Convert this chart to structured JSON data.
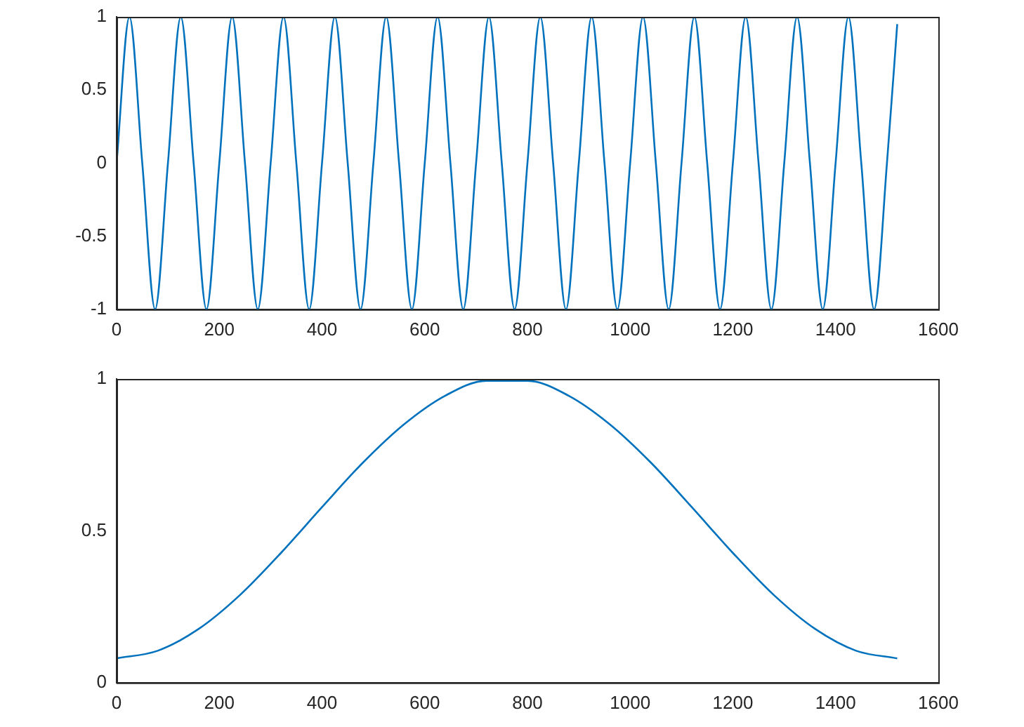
{
  "chart_data": [
    {
      "type": "line",
      "x": [
        0,
        25,
        50,
        75,
        100,
        125,
        150,
        175,
        200,
        225,
        250,
        275,
        300,
        325,
        350,
        375,
        400,
        425,
        450,
        475,
        500,
        525,
        550,
        575,
        600,
        625,
        650,
        675,
        700,
        725,
        750,
        775,
        800,
        825,
        850,
        875,
        900,
        925,
        950,
        975,
        1000,
        1025,
        1050,
        1075,
        1100,
        1125,
        1150,
        1175,
        1200,
        1225,
        1250,
        1275,
        1300,
        1325,
        1350,
        1375,
        1400,
        1425,
        1450,
        1475,
        1500,
        1520
      ],
      "series": [
        {
          "color": "#0072bd",
          "values": [
            0,
            1,
            0,
            -1,
            0,
            1,
            0,
            -1,
            0,
            1,
            0,
            -1,
            0,
            1,
            0,
            -1,
            0,
            1,
            0,
            -1,
            0,
            1,
            0,
            -1,
            0,
            1,
            0,
            -1,
            0,
            1,
            0,
            -1,
            0,
            1,
            0,
            -1,
            0,
            1,
            0,
            -1,
            0,
            1,
            0,
            -1,
            0,
            1,
            0,
            -1,
            0,
            1,
            0,
            -1,
            0,
            1,
            0,
            -1,
            0,
            1,
            0,
            -1,
            0,
            0.95
          ]
        }
      ],
      "xlim": [
        0,
        1600
      ],
      "xticks": [
        0,
        200,
        400,
        600,
        800,
        1000,
        1200,
        1400,
        1600
      ],
      "ylim": [
        -1,
        1
      ],
      "yticks": [
        -1,
        -0.5,
        0,
        0.5,
        1
      ],
      "grid": false,
      "legend": false,
      "marker": "none",
      "line_style": "solid"
    },
    {
      "type": "line",
      "x": [
        0,
        80,
        160,
        240,
        320,
        400,
        480,
        560,
        640,
        720,
        800,
        880,
        960,
        1040,
        1120,
        1200,
        1280,
        1360,
        1440,
        1520
      ],
      "series": [
        {
          "color": "#0072bd",
          "values": [
            0.08,
            0.105,
            0.177,
            0.288,
            0.427,
            0.578,
            0.725,
            0.851,
            0.945,
            0.994,
            0.994,
            0.945,
            0.851,
            0.725,
            0.578,
            0.427,
            0.288,
            0.177,
            0.105,
            0.08
          ]
        }
      ],
      "xlim": [
        0,
        1600
      ],
      "xticks": [
        0,
        200,
        400,
        600,
        800,
        1000,
        1200,
        1400,
        1600
      ],
      "ylim": [
        0,
        1
      ],
      "yticks": [
        0,
        0.5,
        1
      ],
      "grid": false,
      "legend": false,
      "marker": "none",
      "line_style": "solid"
    }
  ]
}
